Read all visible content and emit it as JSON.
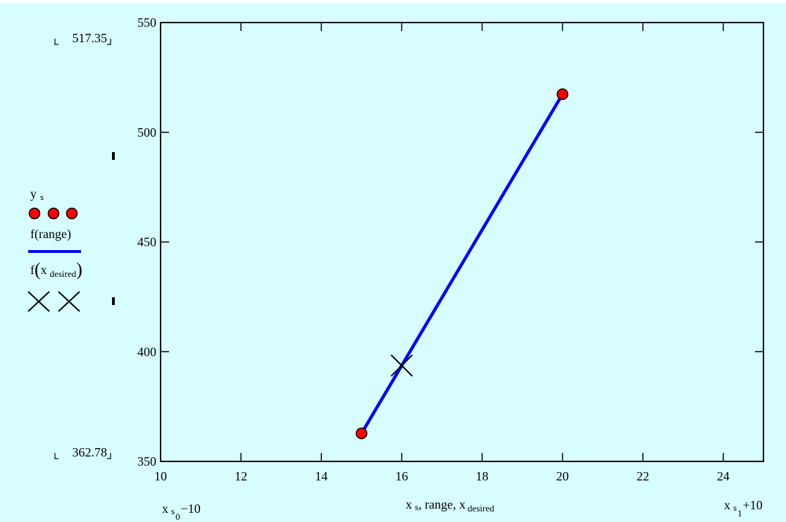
{
  "chart_data": {
    "type": "line",
    "xlim": [
      10,
      25
    ],
    "ylim": [
      350,
      550
    ],
    "x_ticks": [
      10,
      12,
      14,
      16,
      18,
      20,
      22,
      24
    ],
    "y_ticks": [
      350,
      400,
      450,
      500,
      550
    ],
    "series": [
      {
        "name": "f(range)",
        "style": "line",
        "color": "#0000ff",
        "x": [
          15,
          20
        ],
        "y": [
          362.78,
          517.35
        ]
      },
      {
        "name": "y s",
        "style": "circle",
        "color": "#ff0000",
        "x": [
          15,
          20
        ],
        "y": [
          362.78,
          517.35
        ]
      },
      {
        "name": "f(x desired)",
        "style": "x-marker",
        "color": "#000000",
        "x": [
          16
        ],
        "y": [
          393.69
        ]
      }
    ],
    "y_markers": [
      "517.35",
      "362.78"
    ],
    "x_axis_labels": {
      "left": {
        "base": "x",
        "sub1": "s",
        "sub2": "0",
        "suffix": "−10"
      },
      "center": {
        "text": "x",
        "sub1": "s",
        "mid": ", range, x",
        "sub2": "desired"
      },
      "right": {
        "base": "x",
        "sub1": "s",
        "sub2": "1",
        "suffix": "+10"
      }
    },
    "legend": {
      "ys_base": "y",
      "ys_sub": "s",
      "frange": "f(range)",
      "fxd_pre": "f",
      "fxd_x": "x",
      "fxd_sub": "desired"
    },
    "grid": false
  }
}
